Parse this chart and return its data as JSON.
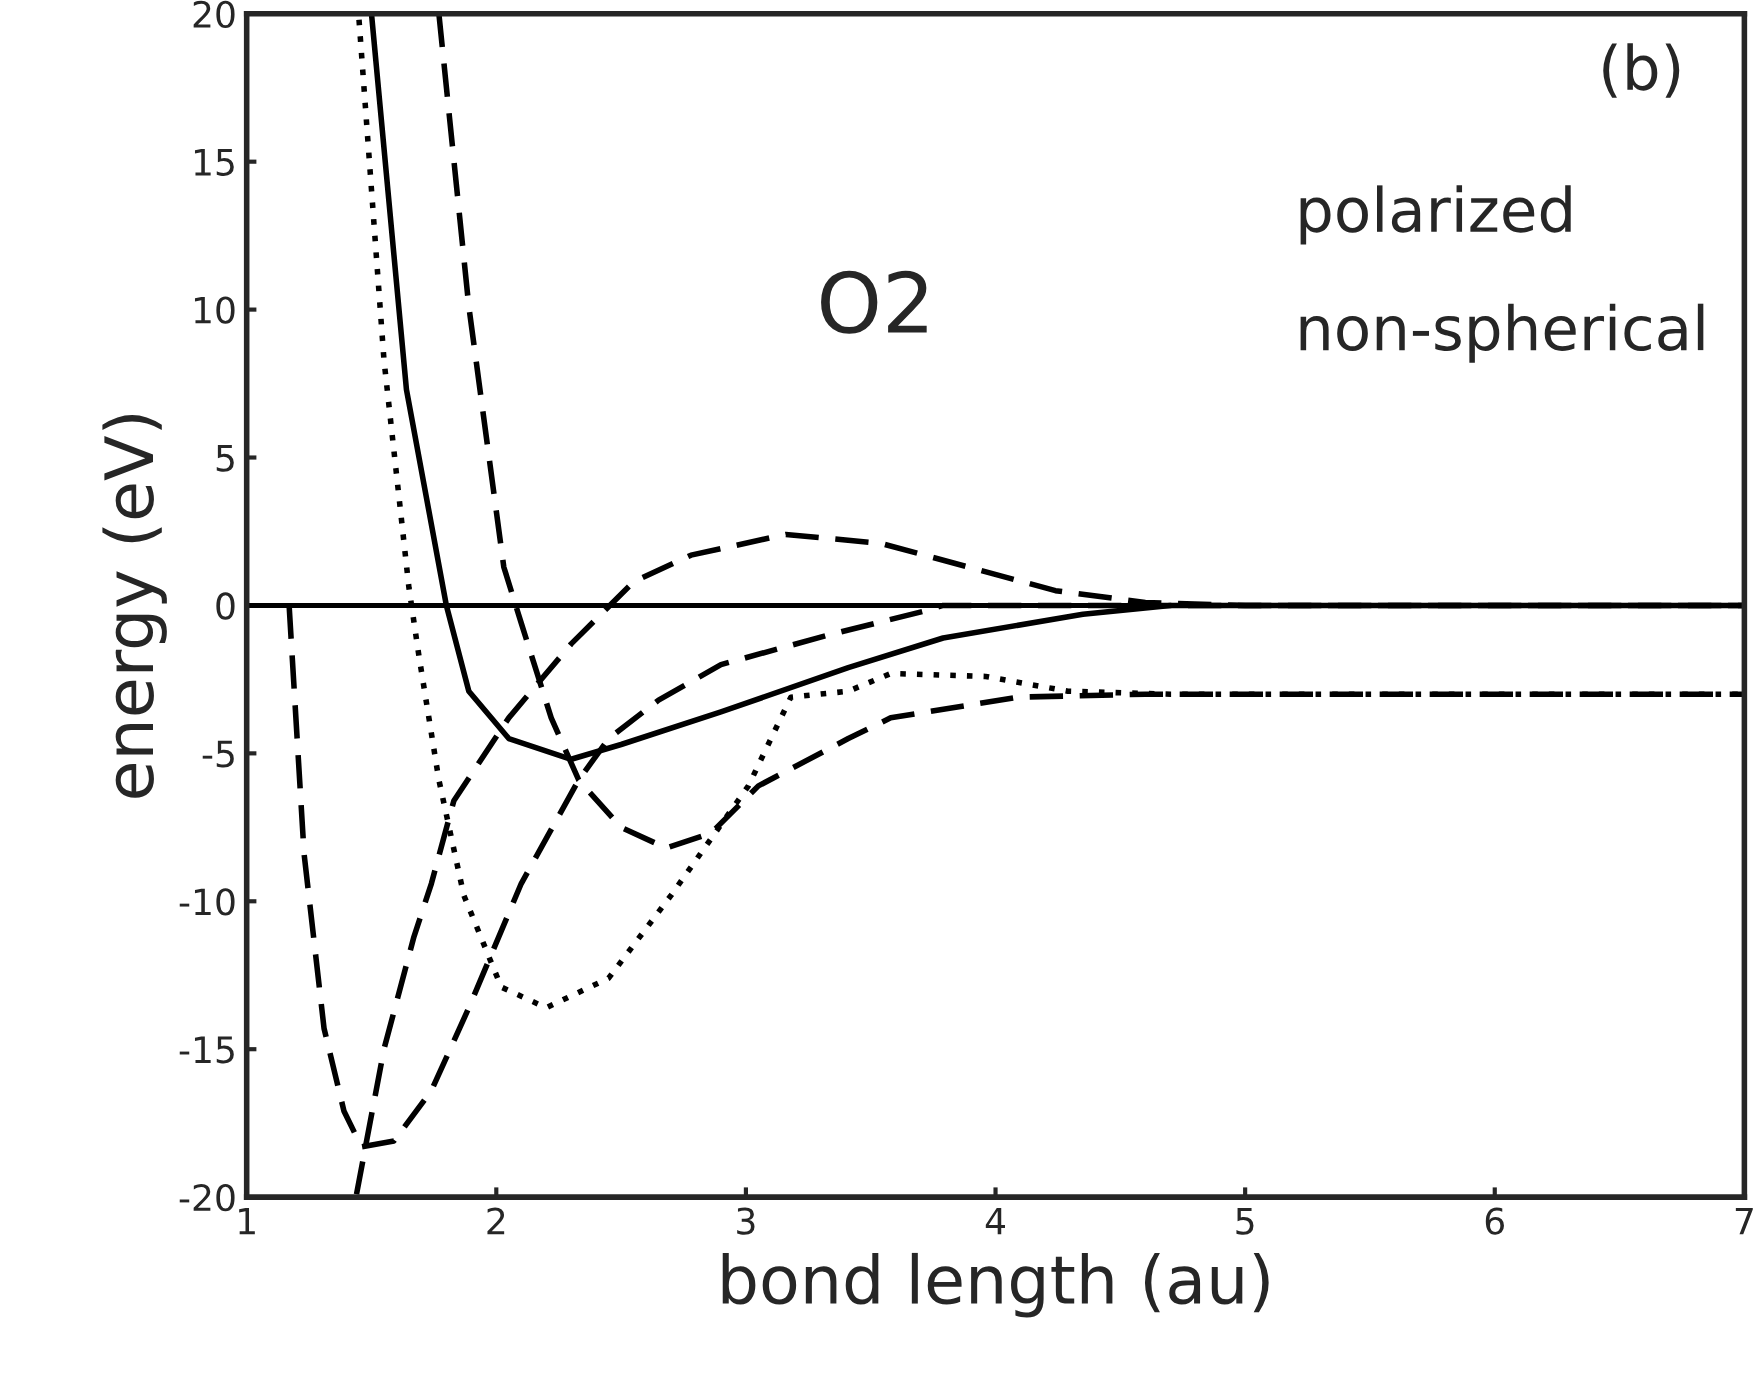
{
  "chart_data": {
    "type": "line",
    "xlabel": "bond length (au)",
    "ylabel": "energy (eV)",
    "xlim": [
      1,
      7
    ],
    "ylim": [
      -20,
      20
    ],
    "xticks": [
      1,
      2,
      3,
      4,
      5,
      6,
      7
    ],
    "yticks": [
      -20,
      -15,
      -10,
      -5,
      0,
      5,
      10,
      15,
      20
    ],
    "grid": false,
    "legend": false,
    "marker": "none",
    "annotations": [
      "(b)",
      "polarized",
      "non-spherical",
      "O2"
    ],
    "ref_lines": [
      {
        "axis": "y",
        "value": 0,
        "color": "#000000",
        "line_style": "solid"
      }
    ],
    "series": [
      {
        "color": "#000000",
        "line_style": "solid",
        "x": [
          1.5,
          1.64,
          1.8,
          1.89,
          2.05,
          2.3,
          2.5,
          2.9,
          3.41,
          3.79,
          4.35,
          4.7,
          5.5,
          7
        ],
        "values": [
          20,
          7.3,
          0,
          -2.9,
          -4.5,
          -5.2,
          -4.7,
          -3.6,
          -2.1,
          -1.1,
          -0.3,
          0,
          0,
          0
        ]
      },
      {
        "color": "#000000",
        "line_style": "dashed",
        "x": [
          1.77,
          1.89,
          2.03,
          2.1,
          2.22,
          2.33,
          2.5,
          2.68,
          2.86,
          3.05,
          3.41,
          3.58,
          4.09,
          4.6,
          7
        ],
        "values": [
          20,
          10.1,
          1.3,
          -0.6,
          -3.8,
          -5.9,
          -7.5,
          -8.2,
          -7.7,
          -6.1,
          -4.5,
          -3.8,
          -3.1,
          -3.0,
          -3.0
        ]
      },
      {
        "color": "#000000",
        "line_style": "dotted",
        "x": [
          1.45,
          1.55,
          1.65,
          1.69,
          1.77,
          1.87,
          2.02,
          2.2,
          2.45,
          2.7,
          3.01,
          3.18,
          3.41,
          3.58,
          3.96,
          4.29,
          4.7,
          7
        ],
        "values": [
          19.8,
          8.3,
          0.6,
          -1.7,
          -5.9,
          -9.8,
          -12.9,
          -13.6,
          -12.6,
          -9.8,
          -6.1,
          -3.1,
          -2.9,
          -2.3,
          -2.4,
          -2.9,
          -3.0,
          -3.0
        ]
      },
      {
        "color": "#000000",
        "line_style": "dashed",
        "x": [
          1.17,
          1.23,
          1.31,
          1.39,
          1.46,
          1.59,
          1.74,
          1.89,
          2.1,
          2.33,
          2.45,
          2.65,
          2.9,
          3.33,
          3.71,
          3.79,
          7
        ],
        "values": [
          0,
          -8.4,
          -14.3,
          -17.1,
          -18.3,
          -18.1,
          -16.4,
          -13.6,
          -9.4,
          -5.9,
          -4.5,
          -3.2,
          -2.0,
          -1.0,
          -0.2,
          0,
          0
        ]
      },
      {
        "color": "#000000",
        "line_style": "dashed",
        "x": [
          1.44,
          1.55,
          1.67,
          1.74,
          1.83,
          2.05,
          2.3,
          2.55,
          2.78,
          3.16,
          3.54,
          3.89,
          4.24,
          4.6,
          5.0,
          7
        ],
        "values": [
          -19.9,
          -15.0,
          -11.2,
          -9.4,
          -6.6,
          -3.8,
          -1.3,
          0.8,
          1.7,
          2.4,
          2.1,
          1.3,
          0.5,
          0.1,
          0,
          0
        ]
      }
    ]
  }
}
